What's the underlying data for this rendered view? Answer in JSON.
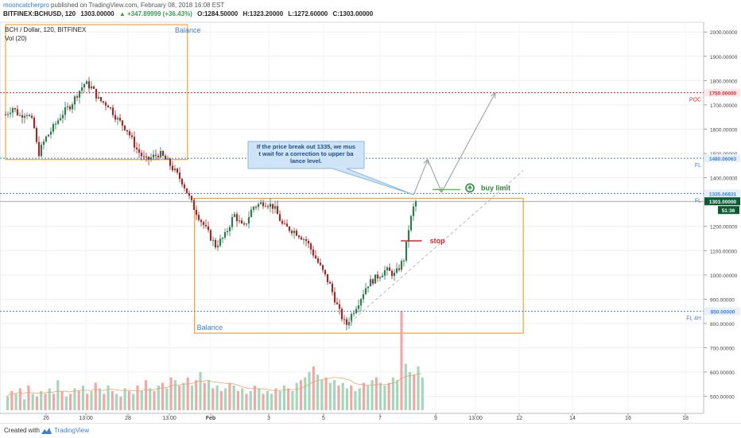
{
  "header": {
    "author": "mooncatcherpro",
    "published": "published on TradingView.com, February 08, 2018 16:08 EST",
    "symbol": "BITFINEX:BCHUSD, 120",
    "last": "1303.00000",
    "change": "▲ +347.89999 (+36.43%)",
    "open": "O:1284.50000",
    "high": "H:1323.20000",
    "low": "L:1272.60000",
    "close": "C:1303.00000"
  },
  "chart_title": "BCH / Dollar, 120, BITFINEX",
  "volume_indicator": "Vol (20)",
  "footer": {
    "created_with": "Created with",
    "brand": "TradingView"
  },
  "colors": {
    "up": "#2f7a52",
    "down": "#9b2a2a",
    "vol_up": "#a5d6b9",
    "vol_down": "#f2a7a7",
    "balance_box": "#f5a233",
    "level_line": "#3d7fd0",
    "poc_line": "#d8262e",
    "stop_line": "#d8262e",
    "buy_line": "#5cc24f",
    "price_tag": "#0b5a31",
    "annotation_bg": "#cfe4f7",
    "annotation_border": "#8ab8e3"
  },
  "chart_data": {
    "type": "candlestick",
    "y_axis": {
      "ticks": [
        "2000.00000",
        "1900.00000",
        "1800.00000",
        "1700.00000",
        "1600.00000",
        "1500.00000",
        "1400.00000",
        "1300.00000",
        "1200.00000",
        "1100.00000",
        "1000.00000",
        "900.00000",
        "800.00000",
        "700.00000",
        "600.00000",
        "500.00000"
      ]
    },
    "x_axis": {
      "ticks": [
        "26",
        "13:00",
        "28",
        "13:00",
        "Feb",
        "3",
        "5",
        "7",
        "9",
        "13:00",
        "12",
        "14",
        "16",
        "18"
      ]
    },
    "price_path": [
      [
        "2018-01-25 00:00",
        1660
      ],
      [
        "2018-01-25 06:00",
        1690
      ],
      [
        "2018-01-25 12:00",
        1655
      ],
      [
        "2018-01-25 18:00",
        1670
      ],
      [
        "2018-01-26 00:00",
        1620
      ],
      [
        "2018-01-26 04:00",
        1495
      ],
      [
        "2018-01-26 10:00",
        1560
      ],
      [
        "2018-01-26 16:00",
        1600
      ],
      [
        "2018-01-27 00:00",
        1660
      ],
      [
        "2018-01-27 08:00",
        1700
      ],
      [
        "2018-01-27 14:00",
        1750
      ],
      [
        "2018-01-27 20:00",
        1790
      ],
      [
        "2018-01-28 02:00",
        1770
      ],
      [
        "2018-01-28 08:00",
        1720
      ],
      [
        "2018-01-28 16:00",
        1700
      ],
      [
        "2018-01-29 00:00",
        1640
      ],
      [
        "2018-01-29 08:00",
        1600
      ],
      [
        "2018-01-29 16:00",
        1520
      ],
      [
        "2018-01-30 00:00",
        1470
      ],
      [
        "2018-01-30 12:00",
        1500
      ],
      [
        "2018-01-30 20:00",
        1460
      ],
      [
        "2018-01-31 08:00",
        1380
      ],
      [
        "2018-01-31 16:00",
        1290
      ],
      [
        "2018-02-01 00:00",
        1220
      ],
      [
        "2018-02-01 12:00",
        1120
      ],
      [
        "2018-02-01 20:00",
        1160
      ],
      [
        "2018-02-02 04:00",
        1250
      ],
      [
        "2018-02-02 12:00",
        1190
      ],
      [
        "2018-02-02 20:00",
        1280
      ],
      [
        "2018-02-03 06:00",
        1300
      ],
      [
        "2018-02-03 14:00",
        1280
      ],
      [
        "2018-02-03 22:00",
        1200
      ],
      [
        "2018-02-04 08:00",
        1180
      ],
      [
        "2018-02-04 18:00",
        1140
      ],
      [
        "2018-02-05 04:00",
        1050
      ],
      [
        "2018-02-05 14:00",
        960
      ],
      [
        "2018-02-05 22:00",
        850
      ],
      [
        "2018-02-06 04:00",
        790
      ],
      [
        "2018-02-06 10:00",
        850
      ],
      [
        "2018-02-06 16:00",
        900
      ],
      [
        "2018-02-06 22:00",
        960
      ],
      [
        "2018-02-07 06:00",
        990
      ],
      [
        "2018-02-07 14:00",
        1020
      ],
      [
        "2018-02-07 22:00",
        1000
      ],
      [
        "2018-02-08 06:00",
        1070
      ],
      [
        "2018-02-08 10:00",
        1200
      ],
      [
        "2018-02-08 14:00",
        1280
      ],
      [
        "2018-02-08 16:00",
        1303
      ]
    ],
    "levels": [
      {
        "label": "POC",
        "value": 1750,
        "tag": "1750.00000"
      },
      {
        "label": "FL",
        "value": 1480.06063,
        "tag": "1480.06063"
      },
      {
        "label": "FL",
        "value": 1335.06831,
        "tag": "1335.06831"
      },
      {
        "label": "FL 4H",
        "value": 850,
        "tag": "850.00000"
      }
    ],
    "last_price": {
      "value": 1303,
      "tag": "1303.00000",
      "countdown": "51:36"
    },
    "balance_boxes": [
      {
        "label": "Balance",
        "from": "2018-01-25 00:00",
        "to": "2018-01-31 12:00",
        "low": 1475,
        "high": 2030
      },
      {
        "label": "Balance",
        "from": "2018-01-31 18:00",
        "to": "2018-02-12 12:00",
        "low": 760,
        "high": 1315
      }
    ],
    "annotations": {
      "callout": "If the price break out 1335, we must wait for a correction to upper balance level.",
      "buy_limit": "buy limit",
      "stop": "stop"
    },
    "trendline": {
      "from": [
        "2018-02-06 04:00",
        790
      ],
      "to": [
        "2018-02-12 12:00",
        1430
      ]
    },
    "projection": [
      [
        "2018-02-08 14:00",
        1330
      ],
      [
        "2018-02-09 02:00",
        1475
      ],
      [
        "2018-02-09 14:00",
        1340
      ],
      [
        "2018-02-11 12:00",
        1750
      ]
    ],
    "buy_limit_level": 1335,
    "stop_level": 1140,
    "volume_profile": [
      0.25,
      0.35,
      0.3,
      0.4,
      0.2,
      0.45,
      0.3,
      0.25,
      0.35,
      0.3,
      0.4,
      0.3,
      0.55,
      0.35,
      0.25,
      0.3,
      0.4,
      0.35,
      0.45,
      0.3,
      0.35,
      0.5,
      0.4,
      0.3,
      0.45,
      0.35,
      0.3,
      0.25,
      0.4,
      0.35,
      0.3,
      0.45,
      0.35,
      0.55,
      0.4,
      0.35,
      0.45,
      0.5,
      0.4,
      0.6,
      0.55,
      0.45,
      0.5,
      0.6,
      0.45,
      0.55,
      0.7,
      0.5,
      0.55,
      0.4,
      0.45,
      0.35,
      0.4,
      0.5,
      0.45,
      0.35,
      0.4,
      0.3,
      0.35,
      0.45,
      0.4,
      0.3,
      0.35,
      0.3,
      0.4,
      0.35,
      0.45,
      0.4,
      0.35,
      0.5,
      0.55,
      0.6,
      0.7,
      0.8,
      0.65,
      0.55,
      0.6,
      0.5,
      0.55,
      0.45,
      0.5,
      0.4,
      0.45,
      0.35,
      0.4,
      0.5,
      0.45,
      0.55,
      0.6,
      0.5,
      0.45,
      0.5,
      0.6,
      0.55,
      1.0,
      0.85,
      0.7,
      0.65,
      0.8,
      0.6
    ]
  }
}
